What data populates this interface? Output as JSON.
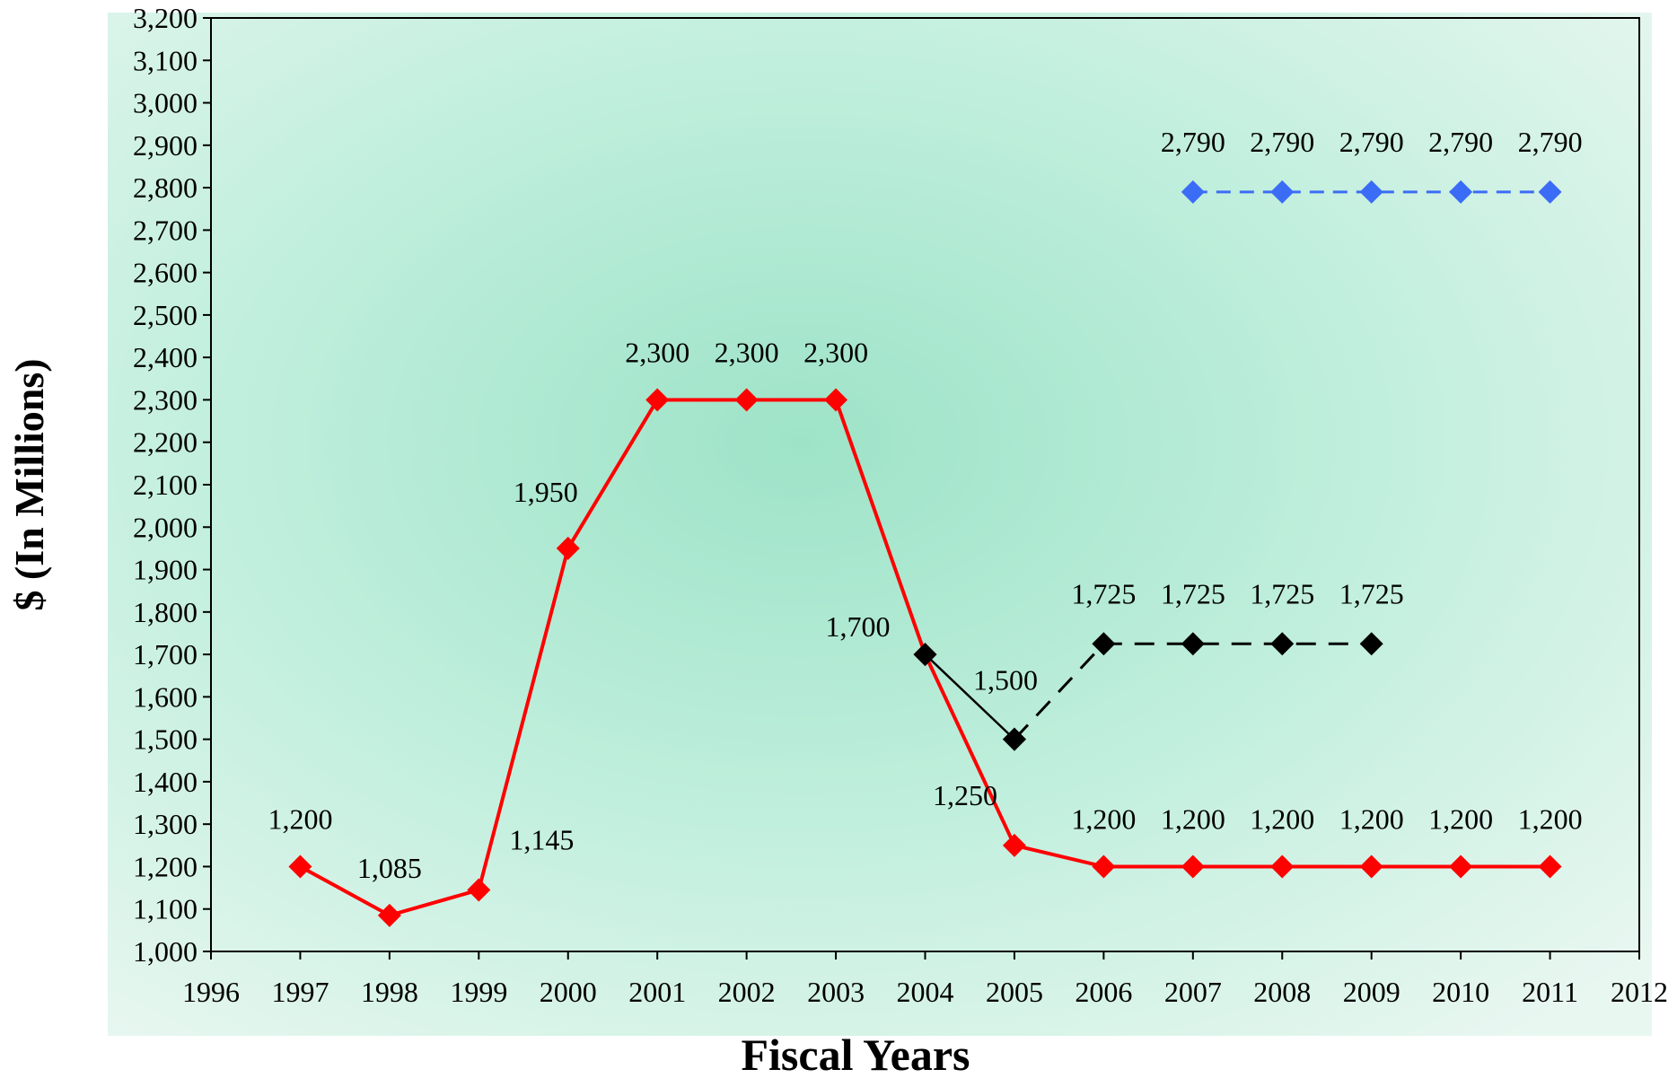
{
  "chart_data": {
    "type": "line",
    "xlabel": "Fiscal Years",
    "ylabel": "$ (In Millions)",
    "xlim": [
      1996,
      2012
    ],
    "ylim": [
      1000,
      3200
    ],
    "x_ticks": [
      1996,
      1997,
      1998,
      1999,
      2000,
      2001,
      2002,
      2003,
      2004,
      2005,
      2006,
      2007,
      2008,
      2009,
      2010,
      2011,
      2012
    ],
    "y_ticks": [
      1000,
      1100,
      1200,
      1300,
      1400,
      1500,
      1600,
      1700,
      1800,
      1900,
      2000,
      2100,
      2200,
      2300,
      2400,
      2500,
      2600,
      2700,
      2800,
      2900,
      3000,
      3100,
      3200
    ],
    "y_tick_labels": [
      "1,000",
      "1,100",
      "1,200",
      "1,300",
      "1,400",
      "1,500",
      "1,600",
      "1,700",
      "1,800",
      "1,900",
      "2,000",
      "2,100",
      "2,200",
      "2,300",
      "2,400",
      "2,500",
      "2,600",
      "2,700",
      "2,800",
      "2,900",
      "3,000",
      "3,100",
      "3,200"
    ],
    "grid": false,
    "legend": "none",
    "series": [
      {
        "color": "#ff0000",
        "line_style": "solid",
        "marker": "diamond",
        "points": [
          {
            "x": 1997,
            "y": 1200,
            "label": "1,200"
          },
          {
            "x": 1998,
            "y": 1085,
            "label": "1,085"
          },
          {
            "x": 1999,
            "y": 1145,
            "label": "1,145"
          },
          {
            "x": 2000,
            "y": 1950,
            "label": "1,950"
          },
          {
            "x": 2001,
            "y": 2300,
            "label": "2,300"
          },
          {
            "x": 2002,
            "y": 2300,
            "label": "2,300"
          },
          {
            "x": 2003,
            "y": 2300,
            "label": "2,300"
          },
          {
            "x": 2004,
            "y": 1700,
            "label": "1,700"
          },
          {
            "x": 2005,
            "y": 1250,
            "label": "1,250"
          },
          {
            "x": 2006,
            "y": 1200,
            "label": "1,200"
          },
          {
            "x": 2007,
            "y": 1200,
            "label": "1,200"
          },
          {
            "x": 2008,
            "y": 1200,
            "label": "1,200"
          },
          {
            "x": 2009,
            "y": 1200,
            "label": "1,200"
          },
          {
            "x": 2010,
            "y": 1200,
            "label": "1,200"
          },
          {
            "x": 2011,
            "y": 1200,
            "label": "1,200"
          }
        ]
      },
      {
        "color": "#000000",
        "line_style": "solid",
        "marker": "diamond",
        "points": [
          {
            "x": 2004,
            "y": 1700,
            "label": ""
          },
          {
            "x": 2005,
            "y": 1500,
            "label": "1,500"
          }
        ]
      },
      {
        "color": "#000000",
        "line_style": "dashed",
        "marker": "diamond",
        "points": [
          {
            "x": 2005,
            "y": 1500,
            "label": ""
          },
          {
            "x": 2006,
            "y": 1725,
            "label": "1,725"
          },
          {
            "x": 2007,
            "y": 1725,
            "label": "1,725"
          },
          {
            "x": 2008,
            "y": 1725,
            "label": "1,725"
          },
          {
            "x": 2009,
            "y": 1725,
            "label": "1,725"
          }
        ]
      },
      {
        "color": "#3b6cf6",
        "line_style": "dashed",
        "marker": "diamond",
        "points": [
          {
            "x": 2007,
            "y": 2790,
            "label": "2,790"
          },
          {
            "x": 2008,
            "y": 2790,
            "label": "2,790"
          },
          {
            "x": 2009,
            "y": 2790,
            "label": "2,790"
          },
          {
            "x": 2010,
            "y": 2790,
            "label": "2,790"
          },
          {
            "x": 2011,
            "y": 2790,
            "label": "2,790"
          }
        ]
      }
    ]
  }
}
